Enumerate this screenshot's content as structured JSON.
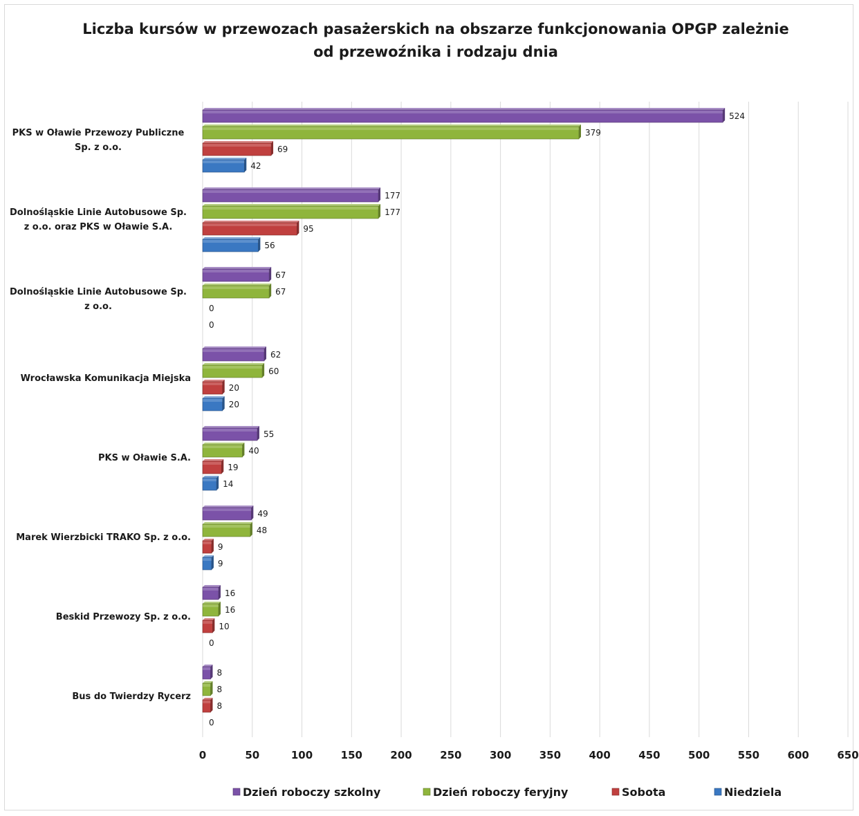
{
  "chart_data": {
    "type": "bar",
    "orientation": "horizontal",
    "title_lines": [
      "Liczba kursów w  przewozach pasażerskich na obszarze funkcjonowania OPGP zależnie",
      "od przewoźnika i rodzaju dnia"
    ],
    "categories": [
      [
        "PKS w Oławie Przewozy Publiczne",
        "Sp. z o.o."
      ],
      [
        "Dolnośląskie Linie Autobusowe Sp.",
        "z o.o. oraz PKS w Oławie S.A."
      ],
      [
        "Dolnośląskie Linie Autobusowe Sp.",
        "z o.o."
      ],
      [
        "Wrocławska Komunikacja Miejska"
      ],
      [
        "PKS w Oławie S.A."
      ],
      [
        "Marek Wierzbicki TRAKO Sp. z o.o."
      ],
      [
        "Beskid Przewozy Sp. z o.o."
      ],
      [
        "Bus do Twierdzy Rycerz"
      ]
    ],
    "series": [
      {
        "name": "Dzień roboczy szkolny",
        "color": "#7b52a8",
        "values": [
          524,
          177,
          67,
          62,
          55,
          49,
          16,
          8
        ]
      },
      {
        "name": "Dzień roboczy feryjny",
        "color": "#8fb53c",
        "values": [
          379,
          177,
          67,
          60,
          40,
          48,
          16,
          8
        ]
      },
      {
        "name": "Sobota",
        "color": "#c0403f",
        "values": [
          69,
          95,
          0,
          20,
          19,
          9,
          10,
          8
        ]
      },
      {
        "name": "Niedziela",
        "color": "#3a78c2",
        "values": [
          42,
          56,
          0,
          20,
          14,
          9,
          0,
          0
        ]
      }
    ],
    "x_ticks": [
      0,
      50,
      100,
      150,
      200,
      250,
      300,
      350,
      400,
      450,
      500,
      550,
      600,
      650
    ],
    "xlim": [
      0,
      650
    ],
    "grid": true,
    "legend_position": "bottom"
  }
}
